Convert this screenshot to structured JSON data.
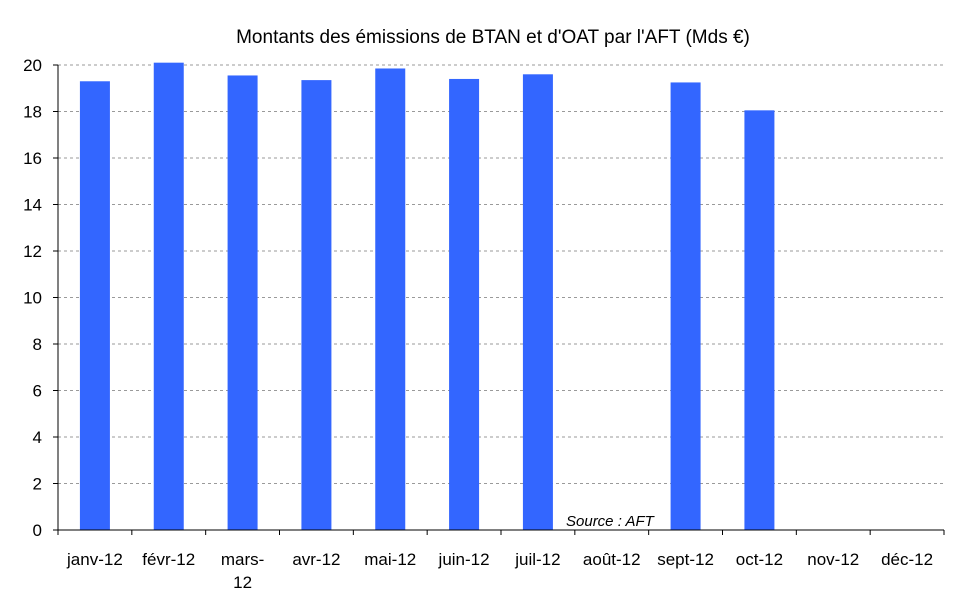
{
  "chart_data": {
    "type": "bar",
    "title": "Montants des émissions de BTAN et d'OAT par l'AFT (Mds €)",
    "xlabel": "",
    "ylabel": "",
    "categories": [
      "janv-12",
      "févr-12",
      "mars-12",
      "avr-12",
      "mai-12",
      "juin-12",
      "juil-12",
      "août-12",
      "sept-12",
      "oct-12",
      "nov-12",
      "déc-12"
    ],
    "values": [
      19.3,
      20.1,
      19.55,
      19.35,
      19.85,
      19.4,
      19.6,
      null,
      19.25,
      18.05,
      null,
      null
    ],
    "ylim": [
      0,
      20
    ],
    "yticks": [
      "0",
      "2",
      "4",
      "6",
      "8",
      "10",
      "12",
      "14",
      "16",
      "18",
      "20"
    ],
    "grid": true,
    "legend": "none",
    "bar_color": "#3366ff",
    "annotation": "Source : AFT"
  }
}
